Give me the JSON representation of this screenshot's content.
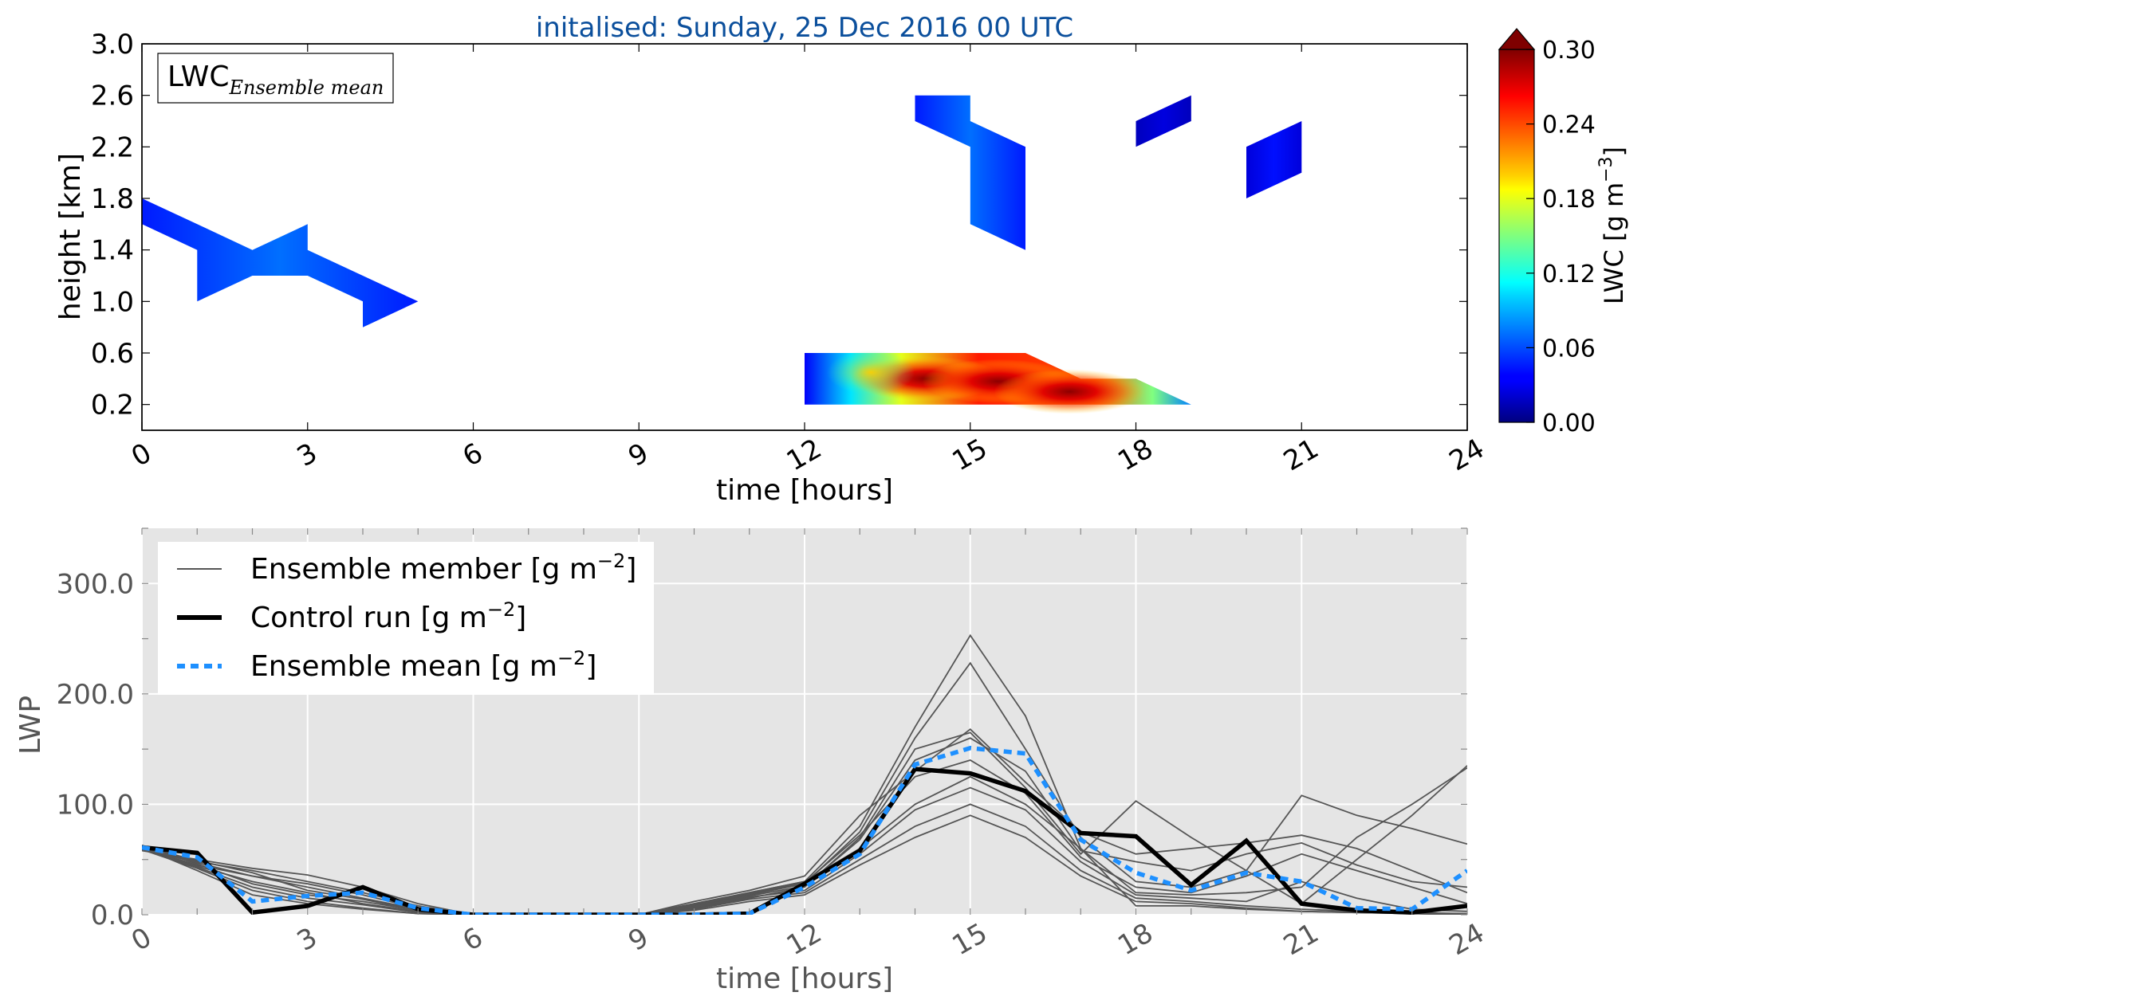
{
  "title": "initalised: Sunday, 25 Dec 2016 00 UTC",
  "colors": {
    "title": "#0b4f9c",
    "member": "#555555",
    "control": "#000000",
    "mean": "#1e90ff",
    "panel_bg": "#e5e5e5"
  },
  "chart_data": [
    {
      "type": "heatmap",
      "inset_label": {
        "base": "LWC",
        "sub": "Ensemble mean"
      },
      "xlabel": "time [hours]",
      "ylabel": "height [km]",
      "xlim": [
        0,
        24
      ],
      "ylim": [
        0,
        3.0
      ],
      "xticks": [
        0,
        3,
        6,
        9,
        12,
        15,
        18,
        21,
        24
      ],
      "yticks": [
        "0.2",
        "0.6",
        "1.0",
        "1.4",
        "1.8",
        "2.2",
        "2.6",
        "3.0"
      ],
      "colorbar": {
        "label": "LWC [g m",
        "label_sup": "−3",
        "label_end": "]",
        "ticks": [
          "0.00",
          "0.06",
          "0.12",
          "0.18",
          "0.24",
          "0.30"
        ],
        "range": [
          0,
          0.3
        ],
        "colormap": "jet",
        "extend": "max"
      },
      "regions": [
        {
          "polygon": [
            [
              0,
              1.8
            ],
            [
              1,
              1.6
            ],
            [
              2,
              1.4
            ],
            [
              3,
              1.6
            ],
            [
              3,
              1.4
            ],
            [
              4,
              1.2
            ],
            [
              5,
              1.0
            ],
            [
              4,
              0.8
            ],
            [
              4,
              1.0
            ],
            [
              3,
              1.2
            ],
            [
              2,
              1.2
            ],
            [
              1,
              1.0
            ],
            [
              1,
              1.4
            ],
            [
              0,
              1.6
            ]
          ],
          "value": 0.05
        },
        {
          "polygon": [
            [
              14,
              2.6
            ],
            [
              15,
              2.6
            ],
            [
              15,
              2.4
            ],
            [
              16,
              2.2
            ],
            [
              16,
              1.4
            ],
            [
              15,
              1.6
            ],
            [
              15,
              2.2
            ],
            [
              14,
              2.4
            ]
          ],
          "value": 0.05
        },
        {
          "polygon": [
            [
              18,
              2.2
            ],
            [
              19,
              2.4
            ],
            [
              19,
              2.6
            ],
            [
              18,
              2.4
            ]
          ],
          "value": 0.02
        },
        {
          "polygon": [
            [
              20,
              2.2
            ],
            [
              21,
              2.4
            ],
            [
              21,
              2.0
            ],
            [
              20,
              1.8
            ]
          ],
          "value": 0.03
        },
        {
          "polygon": [
            [
              12,
              0.6
            ],
            [
              16,
              0.6
            ],
            [
              17,
              0.4
            ],
            [
              18,
              0.4
            ],
            [
              19,
              0.2
            ],
            [
              12,
              0.2
            ]
          ],
          "value": 0.15
        }
      ],
      "hotspots": [
        {
          "x": 14.2,
          "y": 0.4,
          "value": 0.29
        },
        {
          "x": 15.5,
          "y": 0.38,
          "value": 0.27
        },
        {
          "x": 16.8,
          "y": 0.3,
          "value": 0.26
        },
        {
          "x": 13.2,
          "y": 0.45,
          "value": 0.16
        }
      ]
    },
    {
      "type": "line",
      "xlabel": "time [hours]",
      "ylabel": "LWP",
      "xlim": [
        0,
        24
      ],
      "ylim": [
        0,
        350
      ],
      "xticks": [
        0,
        3,
        6,
        9,
        12,
        15,
        18,
        21,
        24
      ],
      "yticks": [
        "0.0",
        "100.0",
        "200.0",
        "300.0"
      ],
      "ytick_values": [
        0,
        100,
        200,
        300
      ],
      "grid": true,
      "legend_position": "top-left",
      "legend": [
        {
          "text": "Ensemble member [g m",
          "sup": "−2",
          "end": "]"
        },
        {
          "text": "Control run [g m",
          "sup": "−2",
          "end": "]"
        },
        {
          "text": "Ensemble mean [g m",
          "sup": "−2",
          "end": "]"
        }
      ],
      "x": [
        0,
        1,
        2,
        3,
        4,
        5,
        6,
        7,
        8,
        9,
        10,
        11,
        12,
        13,
        14,
        15,
        16,
        17,
        18,
        19,
        20,
        21,
        22,
        23,
        24
      ],
      "series": [
        {
          "name": "Control run [g m−2]",
          "role": "control",
          "values": [
            61,
            56,
            2,
            8,
            25,
            5,
            0,
            0,
            0,
            0,
            0,
            1,
            28,
            58,
            132,
            128,
            112,
            74,
            71,
            27,
            67,
            10,
            4,
            2,
            8
          ]
        },
        {
          "name": "Ensemble mean [g m−2]",
          "role": "mean",
          "values": [
            61,
            52,
            12,
            17,
            20,
            6,
            0,
            0,
            0,
            0,
            0,
            1,
            25,
            55,
            136,
            151,
            146,
            68,
            38,
            22,
            38,
            30,
            6,
            5,
            40
          ]
        },
        {
          "role": "member",
          "values": [
            62,
            48,
            40,
            30,
            20,
            8,
            0,
            0,
            0,
            0,
            10,
            20,
            30,
            80,
            170,
            253,
            180,
            60,
            8,
            8,
            5,
            3,
            2,
            1,
            0
          ]
        },
        {
          "role": "member",
          "values": [
            60,
            45,
            35,
            25,
            15,
            5,
            0,
            0,
            0,
            0,
            8,
            18,
            28,
            75,
            160,
            228,
            150,
            70,
            30,
            25,
            40,
            108,
            90,
            78,
            64
          ]
        },
        {
          "role": "member",
          "values": [
            58,
            50,
            42,
            36,
            25,
            10,
            0,
            0,
            0,
            0,
            5,
            15,
            25,
            70,
            150,
            165,
            115,
            55,
            103,
            70,
            40,
            10,
            50,
            90,
            135
          ]
        },
        {
          "role": "member",
          "values": [
            61,
            44,
            30,
            20,
            10,
            3,
            0,
            0,
            0,
            0,
            12,
            22,
            35,
            90,
            130,
            168,
            120,
            75,
            55,
            60,
            65,
            72,
            60,
            40,
            20
          ]
        },
        {
          "role": "member",
          "values": [
            63,
            46,
            28,
            18,
            12,
            4,
            0,
            0,
            0,
            0,
            10,
            20,
            30,
            60,
            100,
            125,
            100,
            60,
            20,
            18,
            20,
            25,
            70,
            100,
            133
          ]
        },
        {
          "role": "member",
          "values": [
            60,
            43,
            25,
            15,
            9,
            2,
            0,
            0,
            0,
            0,
            6,
            16,
            22,
            55,
            95,
            115,
            95,
            48,
            18,
            15,
            12,
            30,
            15,
            5,
            3
          ]
        },
        {
          "role": "member",
          "values": [
            59,
            42,
            22,
            12,
            6,
            1,
            0,
            0,
            0,
            0,
            5,
            14,
            20,
            50,
            80,
            100,
            80,
            40,
            15,
            12,
            8,
            5,
            3,
            2,
            1
          ]
        },
        {
          "role": "member",
          "values": [
            61,
            40,
            18,
            10,
            5,
            1,
            0,
            0,
            0,
            0,
            4,
            12,
            18,
            45,
            70,
            90,
            70,
            35,
            12,
            10,
            6,
            3,
            2,
            1,
            0
          ]
        },
        {
          "role": "member",
          "values": [
            60,
            47,
            35,
            28,
            18,
            6,
            0,
            0,
            0,
            0,
            7,
            17,
            26,
            68,
            140,
            160,
            130,
            58,
            48,
            40,
            55,
            65,
            45,
            30,
            25
          ]
        },
        {
          "role": "member",
          "values": [
            62,
            49,
            38,
            22,
            14,
            4,
            0,
            0,
            0,
            0,
            9,
            19,
            29,
            72,
            125,
            140,
            110,
            52,
            25,
            20,
            35,
            55,
            40,
            25,
            10
          ]
        }
      ]
    }
  ]
}
